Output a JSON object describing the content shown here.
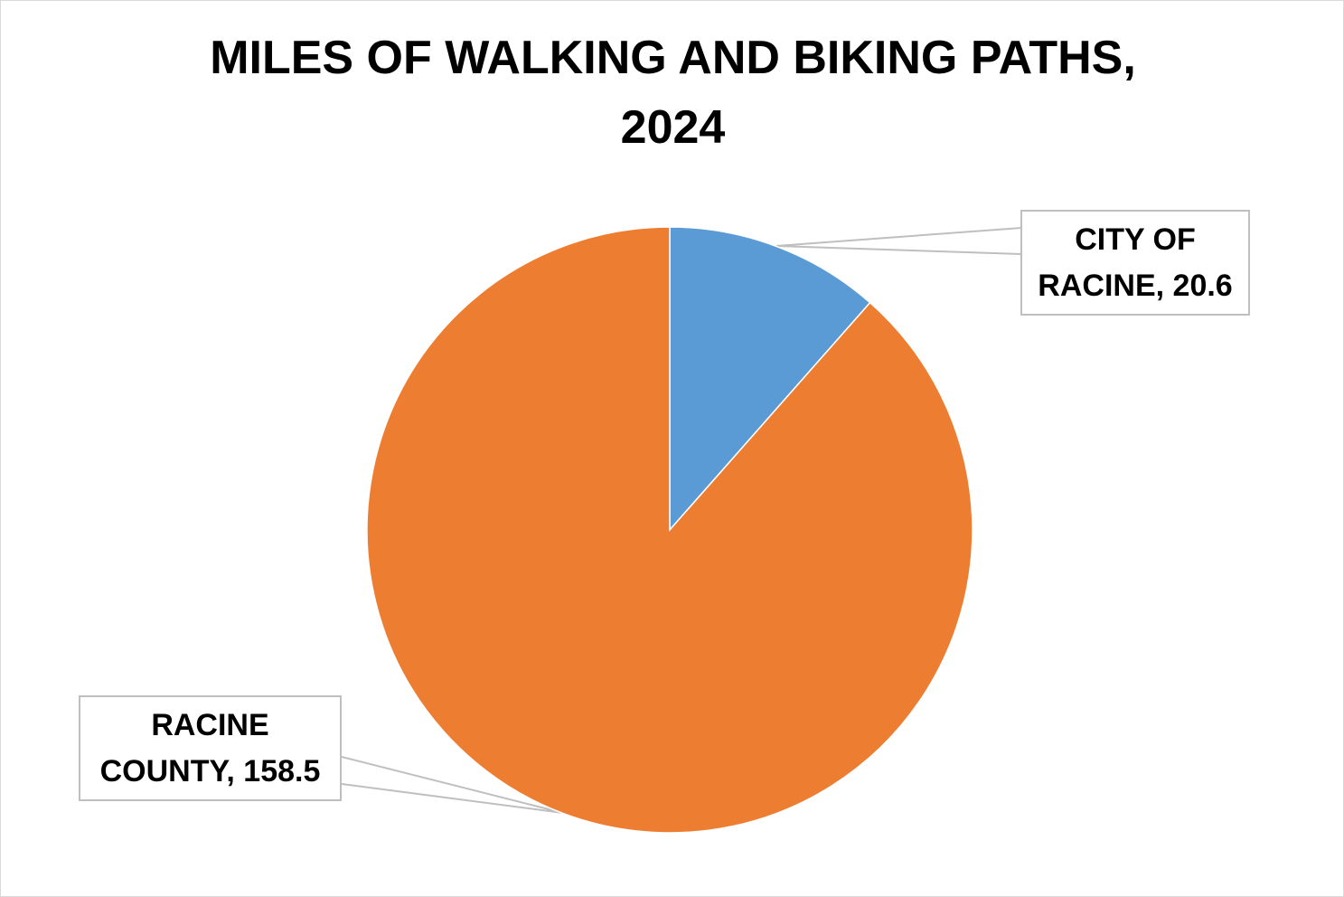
{
  "chart_data": {
    "type": "pie",
    "title_lines": [
      "MILES OF WALKING AND BIKING PATHS,",
      "2024"
    ],
    "categories": [
      "CITY OF RACINE",
      "RACINE COUNTY"
    ],
    "values": [
      20.6,
      158.5
    ],
    "colors": [
      "#5B9BD5",
      "#ED7D31"
    ],
    "data_labels": [
      [
        "CITY OF",
        "RACINE, 20.6"
      ],
      [
        "RACINE",
        "COUNTY, 158.5"
      ]
    ],
    "start_angle_deg": 0,
    "direction": "clockwise",
    "legend": "none"
  }
}
